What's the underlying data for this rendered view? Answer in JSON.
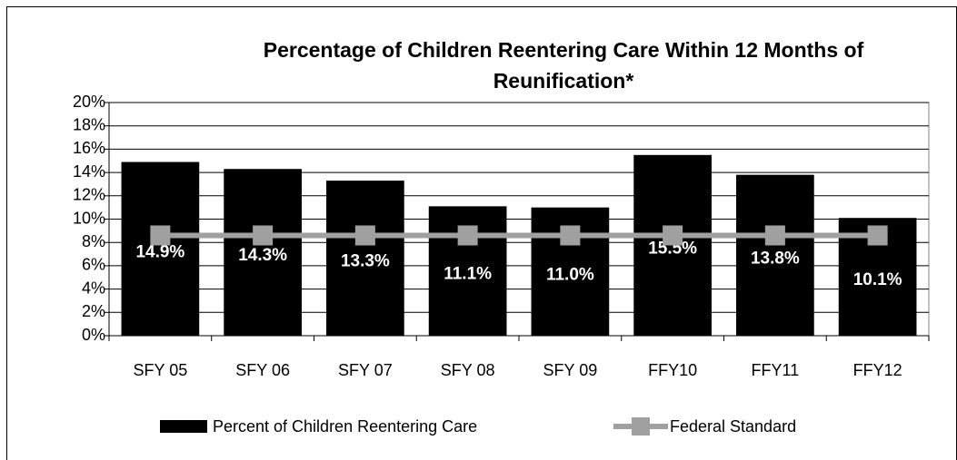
{
  "chart_data": {
    "type": "bar",
    "title": [
      "Percentage of Children Reentering Care Within 12 Months of",
      "Reunification*"
    ],
    "categories": [
      "SFY 05",
      "SFY 06",
      "SFY 07",
      "SFY 08",
      "SFY 09",
      "FFY10",
      "FFY11",
      "FFY12"
    ],
    "series": [
      {
        "name": "Percent of Children Reentering Care",
        "color": "#000000",
        "type": "bar",
        "values": [
          14.9,
          14.3,
          13.3,
          11.1,
          11.0,
          15.5,
          13.8,
          10.1
        ],
        "value_labels": [
          "14.9%",
          "14.3%",
          "13.3%",
          "11.1%",
          "11.0%",
          "15.5%",
          "13.8%",
          "10.1%"
        ]
      },
      {
        "name": "Federal Standard",
        "color": "#a0a0a0",
        "type": "line",
        "values": [
          8.6,
          8.6,
          8.6,
          8.6,
          8.6,
          8.6,
          8.6,
          8.6
        ]
      }
    ],
    "ylim": [
      0,
      20
    ],
    "yticks": [
      {
        "value": 0,
        "label": "0%"
      },
      {
        "value": 2,
        "label": "2%"
      },
      {
        "value": 4,
        "label": "4%"
      },
      {
        "value": 6,
        "label": "6%"
      },
      {
        "value": 8,
        "label": "8%"
      },
      {
        "value": 10,
        "label": "10%"
      },
      {
        "value": 12,
        "label": "12%"
      },
      {
        "value": 14,
        "label": "14%"
      },
      {
        "value": 16,
        "label": "16%"
      },
      {
        "value": 18,
        "label": "18%"
      },
      {
        "value": 20,
        "label": "20%"
      }
    ],
    "grid": true,
    "legend": "bottom"
  }
}
